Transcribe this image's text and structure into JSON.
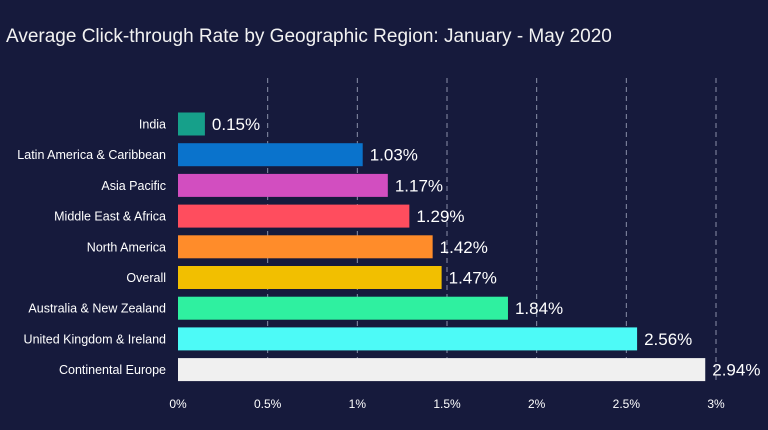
{
  "chart_data": {
    "type": "bar",
    "orientation": "horizontal",
    "title": "Average Click-through Rate by Geographic Region: January - May 2020",
    "xlabel": "",
    "ylabel": "",
    "xlim": [
      0,
      3
    ],
    "grid": true,
    "categories": [
      "India",
      "Latin America & Caribbean",
      "Asia Pacific",
      "Middle East & Africa",
      "North America",
      "Overall",
      "Australia & New Zealand",
      "United Kingdom & Ireland",
      "Continental Europe"
    ],
    "values": [
      0.15,
      1.03,
      1.17,
      1.29,
      1.42,
      1.47,
      1.84,
      2.56,
      2.94
    ],
    "value_labels": [
      "0.15%",
      "1.03%",
      "1.17%",
      "1.29%",
      "1.42%",
      "1.47%",
      "1.84%",
      "2.56%",
      "2.94%"
    ],
    "bar_colors": [
      "#16a08a",
      "#0a73cc",
      "#d24ec0",
      "#ff4d5e",
      "#ff8c2a",
      "#f2bf00",
      "#2ff0a0",
      "#4dfaf7",
      "#f0f0f0"
    ],
    "ticks": [
      0,
      0.5,
      1,
      1.5,
      2,
      2.5,
      3
    ],
    "tick_labels": [
      "0%",
      "0.5%",
      "1%",
      "1.5%",
      "2%",
      "2.5%",
      "3%"
    ]
  }
}
